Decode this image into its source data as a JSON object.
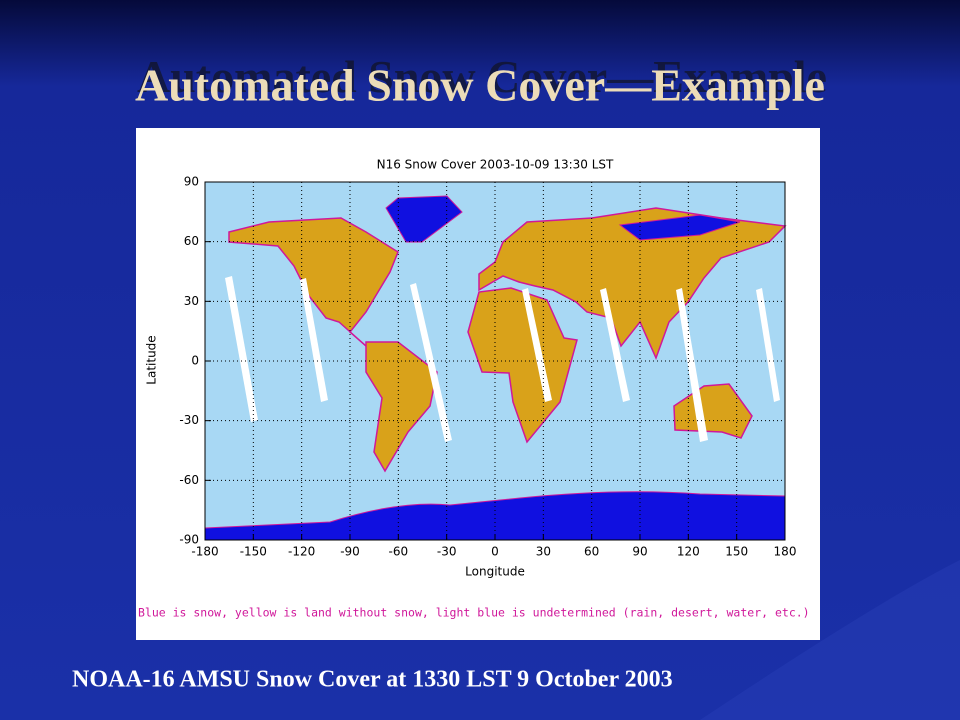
{
  "slide": {
    "title": "Automated Snow Cover—Example",
    "caption": "NOAA-16 AMSU Snow Cover at 1330 LST 9 October 2003"
  },
  "map": {
    "title": "N16 Snow Cover 2003-10-09 13:30 LST",
    "xlabel": "Longitude",
    "ylabel": "Latitude",
    "xlim": [
      -180,
      180
    ],
    "ylim": [
      -90,
      90
    ],
    "xticks": [
      -180,
      -150,
      -120,
      -90,
      -60,
      -30,
      0,
      30,
      60,
      90,
      120,
      150,
      180
    ],
    "yticks": [
      -90,
      -60,
      -30,
      0,
      30,
      60,
      90
    ],
    "note": "Blue is snow, yellow is land without snow, light blue is undetermined (rain, desert, water, etc.)"
  }
}
